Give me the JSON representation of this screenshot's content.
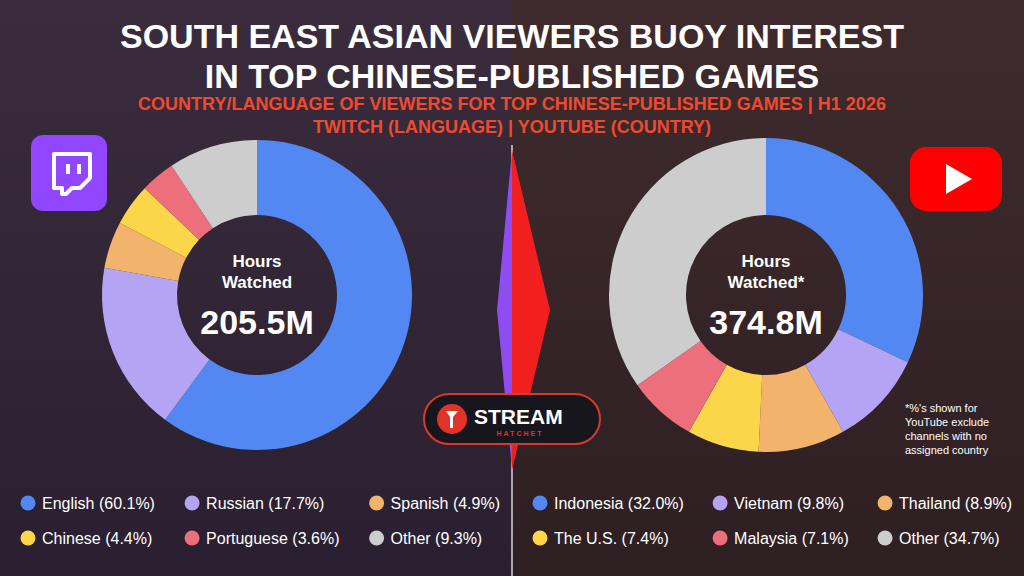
{
  "header": {
    "title": [
      "SOUTH EAST ASIAN VIEWERS BUOY INTEREST",
      "IN TOP CHINESE-PUBLISHED GAMES"
    ],
    "subtitle": [
      "COUNTRY/LANGUAGE OF VIEWERS FOR TOP CHINESE-PUBLISHED GAMES | H1 2026",
      "TWITCH (LANGUAGE) | YOUTUBE (COUNTRY)"
    ]
  },
  "chart_data": [
    {
      "type": "donut",
      "title": "Hours Watched",
      "annotations": [
        "205.5M"
      ],
      "categories": [
        "English (60.1%)",
        "Russian (17.7%)",
        "Spanish (4.9%)",
        "Chinese (4.4%)",
        "Portuguese (3.6%)",
        "Other (9.3%)"
      ],
      "values": [
        60.1,
        17.7,
        4.9,
        4.4,
        3.6,
        9.3
      ],
      "colors": [
        "#5387f2",
        "#b5a4f4",
        "#f2b46d",
        "#fcd64a",
        "#ee6f7c",
        "#cdcdcd"
      ],
      "legend": "bottom"
    },
    {
      "type": "donut",
      "title": "Hours Watched*",
      "annotations": [
        "374.8M",
        "*%'s shown for YouTube exclude channels with no assigned country"
      ],
      "categories": [
        "Indonesia (32.0%)",
        "Vietnam (9.8%)",
        "Thailand (8.9%)",
        "The U.S. (7.4%)",
        "Malaysia (7.1%)",
        "Other (34.7%)"
      ],
      "values": [
        32.0,
        9.8,
        8.9,
        7.4,
        7.1,
        34.7
      ],
      "colors": [
        "#5387f2",
        "#b5a4f4",
        "#f2b46d",
        "#fcd64a",
        "#ee6f7c",
        "#cdcdcd"
      ],
      "legend": "bottom"
    }
  ],
  "brand": {
    "name": "STREAM",
    "tagline": "HATCHET"
  }
}
